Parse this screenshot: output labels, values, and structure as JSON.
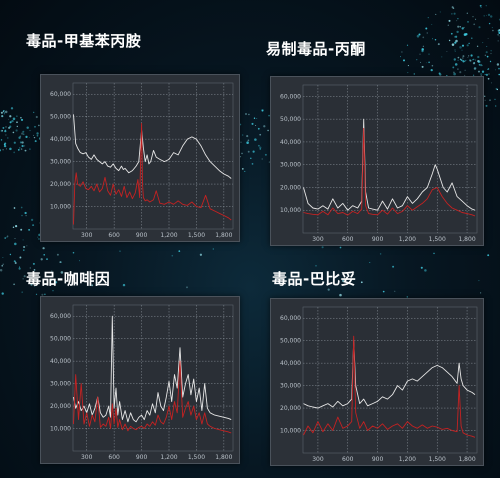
{
  "chart_data": [
    {
      "type": "line",
      "title": "毒品-甲基苯丙胺",
      "xticks": [
        "300",
        "600",
        "900",
        "1,200",
        "1,500",
        "1,800"
      ],
      "yticks": [
        "10,000",
        "20,000",
        "30,000",
        "40,000",
        "50,000",
        "60,000"
      ],
      "xlim": [
        150,
        1900
      ],
      "ylim": [
        0,
        65000
      ],
      "grid": true,
      "series": [
        {
          "color": "#e6e6e6",
          "x": [
            155,
            180,
            200,
            230,
            260,
            290,
            320,
            350,
            380,
            410,
            440,
            470,
            500,
            530,
            560,
            590,
            620,
            650,
            680,
            700,
            720,
            760,
            800,
            840,
            870,
            900,
            920,
            940,
            960,
            980,
            1000,
            1030,
            1060,
            1100,
            1150,
            1200,
            1250,
            1300,
            1350,
            1400,
            1450,
            1500,
            1550,
            1600,
            1650,
            1700,
            1750,
            1800,
            1850,
            1880
          ],
          "y": [
            51000,
            38000,
            36000,
            34000,
            33500,
            34000,
            32000,
            31000,
            33000,
            31000,
            30000,
            29000,
            30000,
            28000,
            27500,
            29000,
            27000,
            26000,
            28000,
            26500,
            27000,
            25000,
            26000,
            28000,
            30000,
            44000,
            36000,
            30000,
            33000,
            29000,
            30000,
            35000,
            32000,
            31000,
            30000,
            31000,
            34000,
            33000,
            37000,
            40000,
            41000,
            40000,
            37000,
            33000,
            30000,
            28000,
            26000,
            24500,
            23500,
            22500
          ]
        },
        {
          "color": "#c42222",
          "x": [
            155,
            170,
            185,
            200,
            230,
            260,
            290,
            320,
            350,
            380,
            410,
            440,
            470,
            500,
            530,
            560,
            590,
            620,
            650,
            680,
            710,
            740,
            770,
            800,
            830,
            860,
            880,
            900,
            910,
            920,
            940,
            960,
            990,
            1030,
            1060,
            1100,
            1150,
            1200,
            1250,
            1300,
            1350,
            1400,
            1450,
            1500,
            1550,
            1600,
            1650,
            1700,
            1750,
            1800,
            1850,
            1880
          ],
          "y": [
            2000,
            20000,
            25000,
            20000,
            19000,
            21000,
            18000,
            17500,
            19000,
            17000,
            20000,
            16500,
            18000,
            23000,
            17000,
            15000,
            20000,
            15500,
            17500,
            14500,
            19000,
            14000,
            16500,
            13500,
            16000,
            22000,
            14000,
            47000,
            20000,
            14000,
            12500,
            13000,
            12000,
            13000,
            17000,
            11500,
            11000,
            12000,
            11000,
            12500,
            11000,
            10500,
            12000,
            10000,
            9500,
            15000,
            9000,
            8000,
            7000,
            6000,
            5000,
            4000
          ]
        }
      ]
    },
    {
      "type": "line",
      "title": "易制毒品-丙酮",
      "xticks": [
        "300",
        "600",
        "900",
        "1,200",
        "1,500",
        "1,800"
      ],
      "yticks": [
        "10,000",
        "20,000",
        "30,000",
        "40,000",
        "50,000",
        "60,000"
      ],
      "xlim": [
        150,
        1900
      ],
      "ylim": [
        0,
        65000
      ],
      "grid": true,
      "series": [
        {
          "color": "#e6e6e6",
          "x": [
            155,
            200,
            250,
            300,
            350,
            400,
            450,
            500,
            550,
            600,
            650,
            700,
            740,
            760,
            780,
            810,
            850,
            900,
            950,
            1000,
            1050,
            1100,
            1150,
            1200,
            1250,
            1300,
            1350,
            1400,
            1450,
            1480,
            1500,
            1530,
            1560,
            1600,
            1650,
            1700,
            1750,
            1800,
            1850,
            1880
          ],
          "y": [
            20000,
            13000,
            11000,
            10500,
            12000,
            10500,
            15000,
            11000,
            13000,
            10000,
            12000,
            11000,
            14000,
            50000,
            18000,
            11000,
            10500,
            10000,
            14000,
            10500,
            15000,
            11000,
            12000,
            16000,
            13000,
            15000,
            18000,
            20000,
            26000,
            30000,
            28000,
            24000,
            20000,
            18000,
            22000,
            16000,
            14000,
            12000,
            10500,
            10000
          ]
        },
        {
          "color": "#c42222",
          "x": [
            155,
            200,
            250,
            300,
            350,
            400,
            450,
            500,
            550,
            600,
            650,
            700,
            740,
            760,
            780,
            810,
            850,
            900,
            950,
            1000,
            1050,
            1100,
            1150,
            1200,
            1250,
            1300,
            1350,
            1400,
            1450,
            1500,
            1550,
            1600,
            1650,
            1700,
            1750,
            1800,
            1850,
            1880
          ],
          "y": [
            9000,
            8500,
            8200,
            8000,
            9500,
            8000,
            11000,
            8500,
            9000,
            7800,
            9500,
            8500,
            10500,
            46000,
            12000,
            8500,
            8200,
            8000,
            10000,
            8300,
            11000,
            8500,
            9500,
            12000,
            10000,
            11500,
            13000,
            15000,
            19000,
            20000,
            16000,
            13000,
            11000,
            10000,
            9000,
            8500,
            8000,
            7500
          ]
        }
      ]
    },
    {
      "type": "line",
      "title": "毒品-咖啡因",
      "xticks": [
        "300",
        "600",
        "900",
        "1,200",
        "1,500",
        "1,800"
      ],
      "yticks": [
        "10,000",
        "20,000",
        "30,000",
        "40,000",
        "50,000",
        "60,000"
      ],
      "xlim": [
        150,
        1900
      ],
      "ylim": [
        0,
        65000
      ],
      "grid": true,
      "series": [
        {
          "color": "#e6e6e6",
          "x": [
            155,
            180,
            210,
            240,
            270,
            300,
            330,
            360,
            390,
            420,
            450,
            480,
            510,
            540,
            560,
            580,
            600,
            620,
            640,
            660,
            690,
            720,
            750,
            780,
            810,
            840,
            870,
            900,
            930,
            960,
            990,
            1020,
            1050,
            1080,
            1110,
            1140,
            1170,
            1200,
            1230,
            1260,
            1290,
            1320,
            1350,
            1380,
            1410,
            1440,
            1470,
            1500,
            1530,
            1560,
            1590,
            1620,
            1650,
            1700,
            1750,
            1800,
            1850,
            1880
          ],
          "y": [
            24000,
            19000,
            22000,
            18000,
            20000,
            17000,
            21000,
            16000,
            19000,
            24000,
            17000,
            15000,
            16000,
            20000,
            15000,
            60000,
            19000,
            28000,
            16000,
            22000,
            14000,
            18000,
            13000,
            17000,
            14000,
            13000,
            15000,
            16000,
            14000,
            18000,
            16000,
            21000,
            17000,
            26000,
            20000,
            18000,
            24000,
            31000,
            22000,
            34000,
            28000,
            46000,
            24000,
            30000,
            34000,
            25000,
            32000,
            22000,
            28000,
            18000,
            30000,
            19000,
            17000,
            16000,
            15500,
            15000,
            14500,
            14000
          ]
        },
        {
          "color": "#c42222",
          "x": [
            155,
            180,
            210,
            240,
            270,
            300,
            330,
            360,
            390,
            420,
            450,
            480,
            510,
            540,
            560,
            580,
            600,
            620,
            640,
            660,
            690,
            720,
            750,
            780,
            810,
            840,
            870,
            900,
            930,
            960,
            990,
            1020,
            1050,
            1080,
            1110,
            1140,
            1170,
            1200,
            1230,
            1260,
            1290,
            1320,
            1350,
            1380,
            1410,
            1440,
            1470,
            1500,
            1530,
            1560,
            1590,
            1620,
            1650,
            1700,
            1750,
            1800,
            1850,
            1880
          ],
          "y": [
            12000,
            34000,
            14000,
            30000,
            12000,
            17000,
            11000,
            16000,
            13000,
            24000,
            10500,
            12000,
            11000,
            15000,
            10000,
            21000,
            12000,
            19000,
            10500,
            14000,
            9500,
            12000,
            9000,
            11000,
            10000,
            9500,
            10500,
            11000,
            10000,
            12000,
            11000,
            13000,
            11500,
            16000,
            13000,
            12000,
            15000,
            20000,
            14000,
            22000,
            17000,
            40000,
            15000,
            19000,
            22000,
            16000,
            20000,
            14000,
            17000,
            12000,
            17000,
            12000,
            11000,
            10000,
            9500,
            9000,
            8500,
            8000
          ]
        }
      ]
    },
    {
      "type": "line",
      "title": "毒品-巴比妥",
      "xticks": [
        "300",
        "600",
        "900",
        "1,200",
        "1,500",
        "1,800"
      ],
      "yticks": [
        "10,000",
        "20,000",
        "30,000",
        "40,000",
        "50,000",
        "60,000"
      ],
      "xlim": [
        150,
        1900
      ],
      "ylim": [
        0,
        65000
      ],
      "grid": true,
      "series": [
        {
          "color": "#e6e6e6",
          "x": [
            155,
            200,
            250,
            300,
            350,
            400,
            450,
            500,
            550,
            600,
            640,
            660,
            680,
            720,
            760,
            800,
            850,
            900,
            950,
            1000,
            1050,
            1100,
            1150,
            1200,
            1250,
            1300,
            1350,
            1400,
            1450,
            1500,
            1550,
            1600,
            1650,
            1700,
            1720,
            1740,
            1760,
            1800,
            1850,
            1880
          ],
          "y": [
            22000,
            21000,
            20500,
            20000,
            21000,
            22000,
            20500,
            23000,
            21000,
            22000,
            24000,
            50000,
            30000,
            22000,
            24000,
            21000,
            22000,
            23000,
            25000,
            24000,
            26000,
            30000,
            28000,
            32000,
            33000,
            32000,
            34000,
            36000,
            38000,
            39000,
            38000,
            36000,
            34000,
            31000,
            40000,
            33000,
            30000,
            28000,
            27000,
            26000
          ]
        },
        {
          "color": "#c42222",
          "x": [
            155,
            200,
            250,
            300,
            350,
            400,
            450,
            500,
            550,
            600,
            640,
            660,
            680,
            720,
            760,
            800,
            850,
            900,
            950,
            1000,
            1050,
            1100,
            1150,
            1200,
            1250,
            1300,
            1350,
            1400,
            1450,
            1500,
            1550,
            1600,
            1650,
            1700,
            1720,
            1740,
            1760,
            1800,
            1850,
            1880
          ],
          "y": [
            8000,
            12000,
            9000,
            14000,
            9500,
            13000,
            10000,
            16000,
            11000,
            12000,
            14000,
            52000,
            18000,
            11000,
            14000,
            10000,
            12000,
            11000,
            13000,
            10500,
            12000,
            13000,
            11000,
            14000,
            12000,
            11000,
            12500,
            11000,
            12000,
            11500,
            10500,
            11000,
            10000,
            9500,
            30000,
            12000,
            9000,
            8000,
            7500,
            7000
          ]
        }
      ]
    }
  ]
}
